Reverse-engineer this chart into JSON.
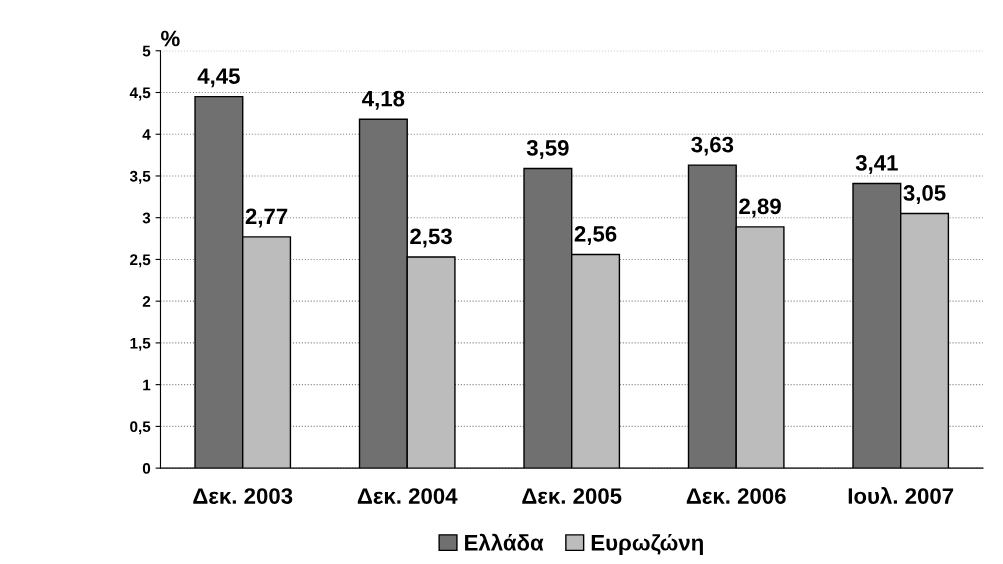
{
  "chart_data": {
    "type": "bar",
    "ylabel": "%",
    "categories": [
      "Δεκ. 2003",
      "Δεκ. 2004",
      "Δεκ. 2005",
      "Δεκ. 2006",
      "Ιουλ. 2007"
    ],
    "series": [
      {
        "name": "Ελλάδα",
        "color": "#707070",
        "values": [
          4.45,
          4.18,
          3.59,
          3.63,
          3.41
        ],
        "value_labels": [
          "4,45",
          "4,18",
          "3,59",
          "3,63",
          "3,41"
        ]
      },
      {
        "name": "Ευρωζώνη",
        "color": "#bcbcbc",
        "values": [
          2.77,
          2.53,
          2.56,
          2.89,
          3.05
        ],
        "value_labels": [
          "2,77",
          "2,53",
          "2,56",
          "2,89",
          "3,05"
        ]
      }
    ],
    "ylim": [
      0,
      5
    ],
    "yticks": [
      0,
      {
        "value": 0.5,
        "label": "0,5"
      },
      1,
      {
        "value": 1.5,
        "label": "1,5"
      },
      2,
      {
        "value": 2.5,
        "label": "2,5"
      },
      3,
      {
        "value": 3.5,
        "label": "3,5"
      },
      4,
      {
        "value": 4.5,
        "label": "4,5"
      },
      5
    ],
    "grid": "y",
    "legend": "bottom"
  }
}
